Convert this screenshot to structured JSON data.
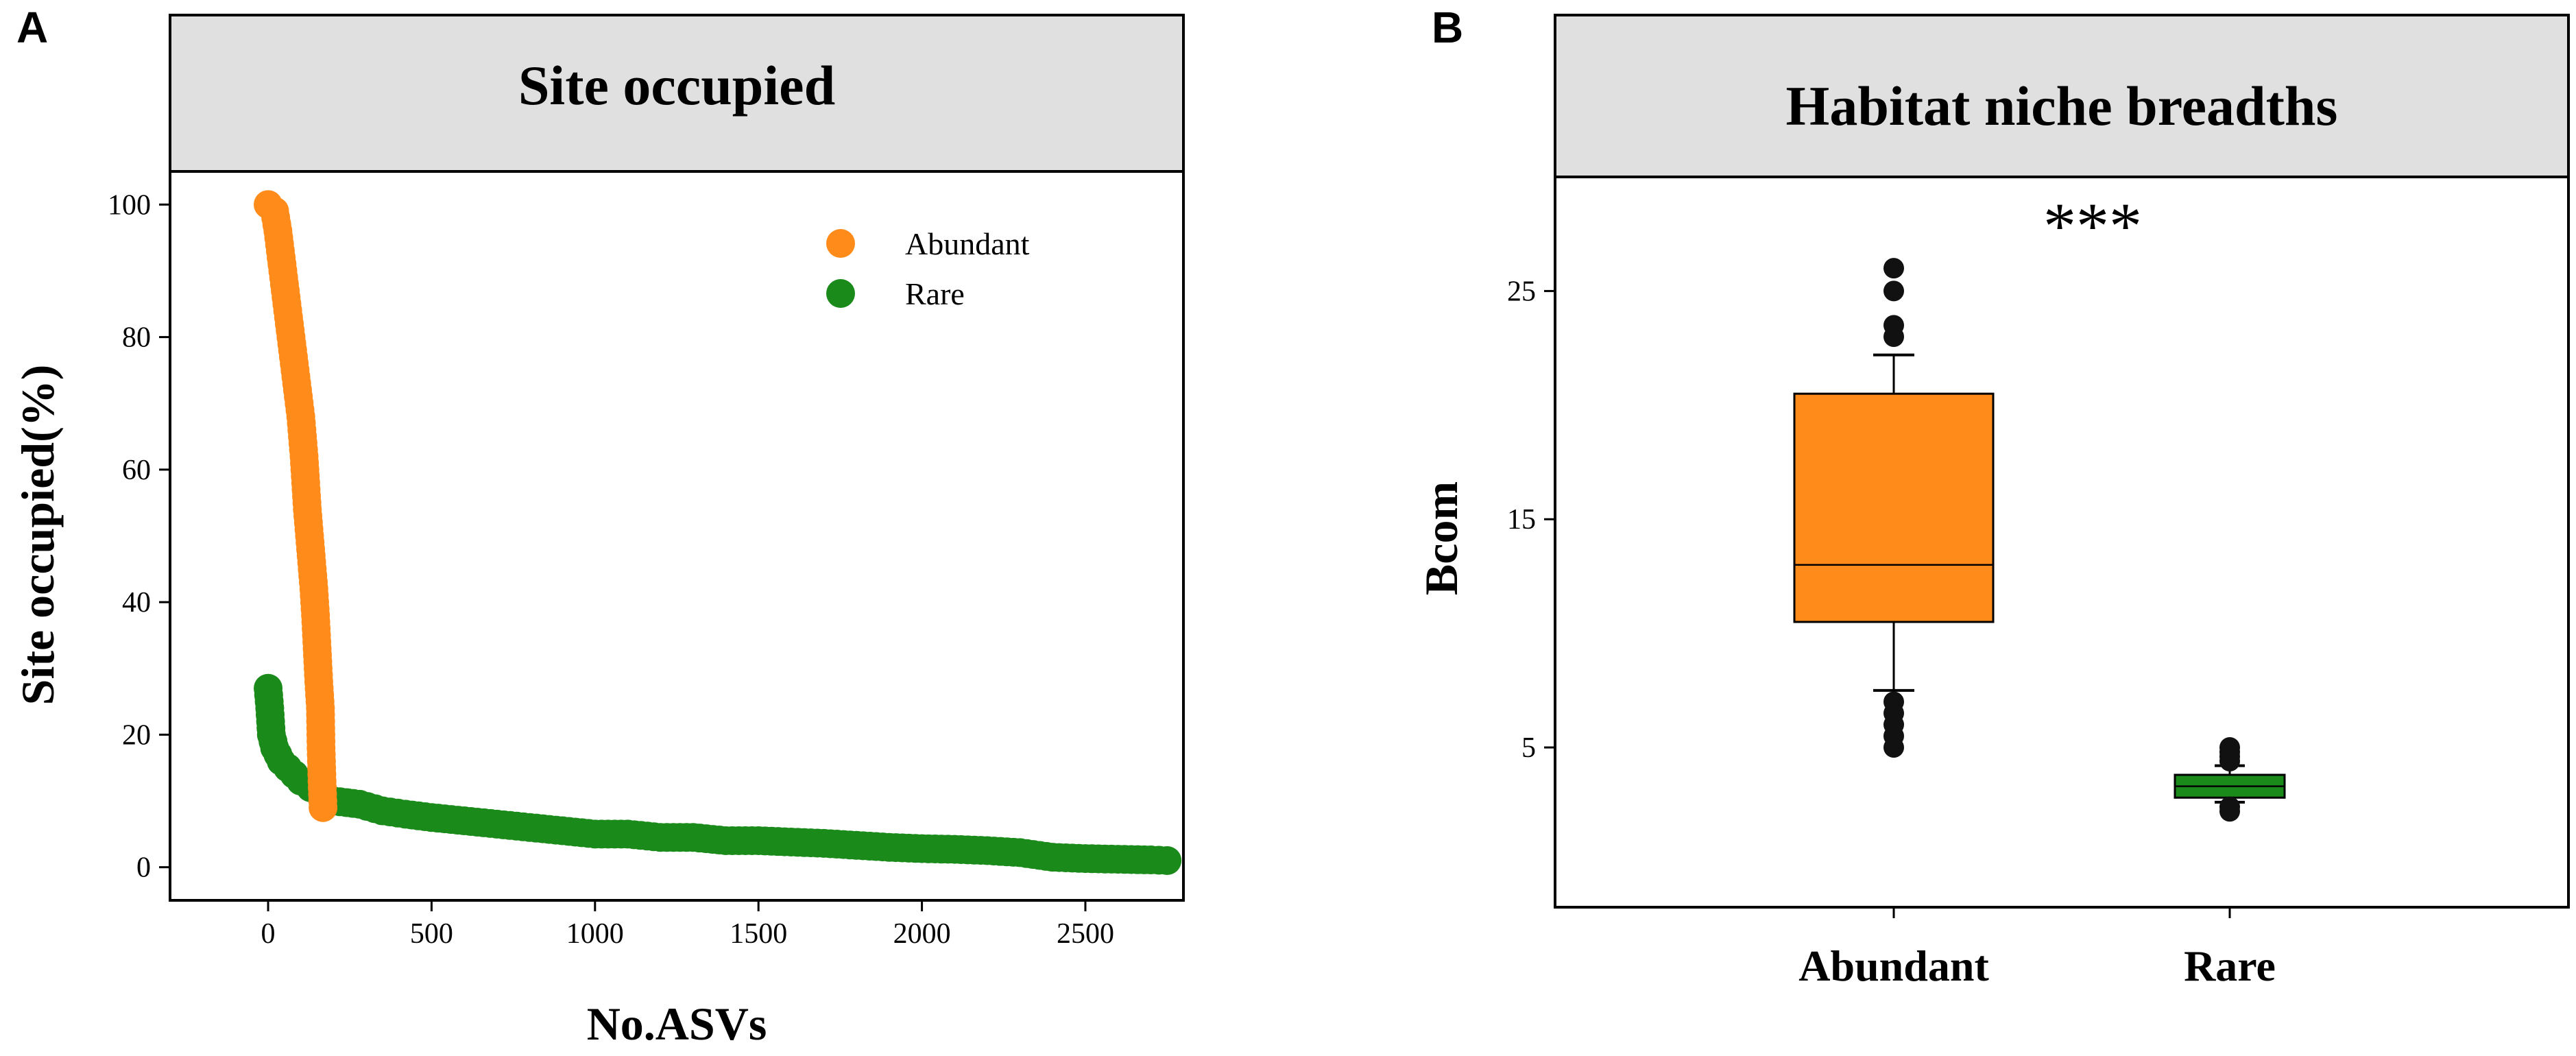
{
  "figure": {
    "panels": [
      "A",
      "B"
    ]
  },
  "colors": {
    "abundant": "#ff8c1a",
    "rare": "#1a8a1a",
    "strip": "#e0e0e0",
    "outlier": "#111111"
  },
  "chart_data": [
    {
      "panel": "A",
      "type": "scatter",
      "title": "Site occupied",
      "xlabel": "No.ASVs",
      "ylabel": "Site occupied(%)",
      "xlim": [
        -300,
        2800
      ],
      "ylim": [
        -5,
        105
      ],
      "xticks": [
        0,
        500,
        1000,
        1500,
        2000,
        2500
      ],
      "yticks": [
        0,
        20,
        40,
        60,
        80,
        100
      ],
      "legend": {
        "position": "top-right",
        "entries": [
          "Abundant",
          "Rare"
        ]
      },
      "series": [
        {
          "name": "Abundant",
          "color": "#ff8c1a",
          "points": [
            [
              0,
              100
            ],
            [
              20,
              99
            ],
            [
              30,
              96
            ],
            [
              40,
              92
            ],
            [
              50,
              88
            ],
            [
              60,
              84
            ],
            [
              70,
              80
            ],
            [
              80,
              76
            ],
            [
              90,
              72
            ],
            [
              100,
              68
            ],
            [
              110,
              62
            ],
            [
              115,
              58
            ],
            [
              120,
              54
            ],
            [
              130,
              48
            ],
            [
              140,
              42
            ],
            [
              145,
              38
            ],
            [
              150,
              33
            ],
            [
              155,
              28
            ],
            [
              160,
              24
            ],
            [
              162,
              18
            ],
            [
              165,
              13
            ],
            [
              168,
              9
            ]
          ]
        },
        {
          "name": "Rare",
          "color": "#1a8a1a",
          "points": [
            [
              0,
              27
            ],
            [
              5,
              24
            ],
            [
              10,
              20
            ],
            [
              20,
              18
            ],
            [
              40,
              16
            ],
            [
              60,
              15
            ],
            [
              80,
              14
            ],
            [
              100,
              13
            ],
            [
              130,
              12
            ],
            [
              160,
              11
            ],
            [
              200,
              10
            ],
            [
              280,
              9.5
            ],
            [
              350,
              8.5
            ],
            [
              420,
              8
            ],
            [
              500,
              7.5
            ],
            [
              600,
              7
            ],
            [
              700,
              6.5
            ],
            [
              800,
              6
            ],
            [
              900,
              5.5
            ],
            [
              1000,
              5
            ],
            [
              1100,
              5
            ],
            [
              1200,
              4.5
            ],
            [
              1300,
              4.5
            ],
            [
              1400,
              4
            ],
            [
              1500,
              4
            ],
            [
              1600,
              3.8
            ],
            [
              1700,
              3.6
            ],
            [
              1800,
              3.3
            ],
            [
              1900,
              3
            ],
            [
              2000,
              2.8
            ],
            [
              2100,
              2.7
            ],
            [
              2200,
              2.5
            ],
            [
              2300,
              2.2
            ],
            [
              2400,
              1.5
            ],
            [
              2500,
              1.3
            ],
            [
              2600,
              1.2
            ],
            [
              2700,
              1.1
            ],
            [
              2750,
              1
            ]
          ]
        }
      ]
    },
    {
      "panel": "B",
      "type": "box",
      "title": "Habitat niche breadths",
      "xlabel": "",
      "ylabel": "Bcom",
      "ylim": [
        -2,
        30
      ],
      "yticks": [
        5,
        15,
        25
      ],
      "categories": [
        "Abundant",
        "Rare"
      ],
      "annotation": "***",
      "boxes": [
        {
          "name": "Abundant",
          "color": "#ff8c1a",
          "q1": 10.5,
          "median": 13,
          "q3": 20.5,
          "whisker_low": 7.5,
          "whisker_high": 22.2,
          "outliers": [
            5,
            5.5,
            6,
            6.5,
            7,
            23,
            23.5,
            25,
            26
          ]
        },
        {
          "name": "Rare",
          "color": "#1a8a1a",
          "q1": 2.8,
          "median": 3.3,
          "q3": 3.8,
          "whisker_low": 2.6,
          "whisker_high": 4.2,
          "outliers": [
            2.2,
            2.4,
            4.4,
            4.6,
            4.8,
            5
          ]
        }
      ]
    }
  ]
}
